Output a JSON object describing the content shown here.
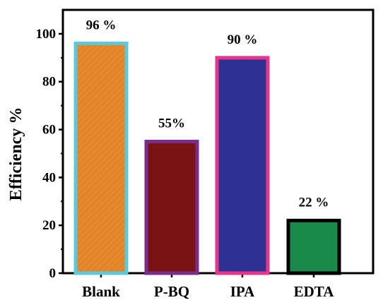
{
  "chart_data": {
    "type": "bar",
    "categories": [
      "Blank",
      "P-BQ",
      "IPA",
      "EDTA"
    ],
    "values": [
      96,
      55,
      90,
      22
    ],
    "data_labels": [
      "96 %",
      "55%",
      "90 %",
      "22 %"
    ],
    "fill_colors": [
      "#E8822A",
      "#7A1414",
      "#2E3192",
      "#1A8A4A"
    ],
    "border_colors": [
      "#5BC8DC",
      "#7B2C8C",
      "#E8358C",
      "#000000"
    ],
    "ylabel": "Efficiency %",
    "xlabel": "",
    "ylim": [
      0,
      110
    ],
    "yticks": [
      0,
      20,
      40,
      60,
      80,
      100
    ],
    "grid": false,
    "legend": "none"
  }
}
